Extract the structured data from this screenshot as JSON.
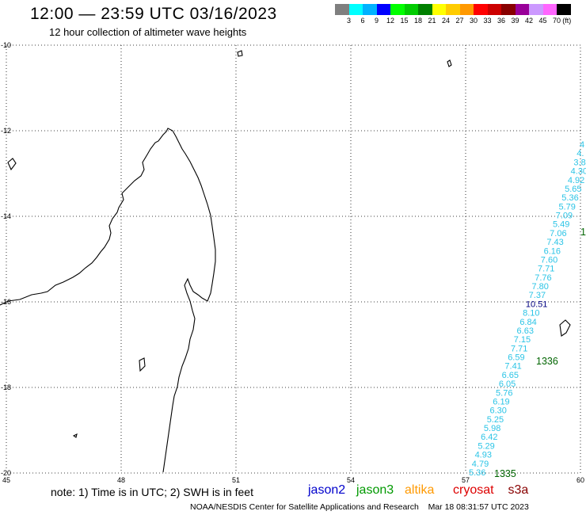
{
  "header": {
    "title": "12:00 — 23:59 UTC 03/16/2023",
    "subtitle": "12 hour collection of altimeter wave heights"
  },
  "color_scale": {
    "unit": "(ft)",
    "colors": [
      "#7f7f7f",
      "#00ffff",
      "#00b2ff",
      "#0000ff",
      "#00ff00",
      "#00cc00",
      "#008000",
      "#ffff00",
      "#ffcc00",
      "#ff9900",
      "#ff0000",
      "#cc0000",
      "#880000",
      "#990099",
      "#cc99ff",
      "#ff66ff",
      "#000000"
    ],
    "labels": [
      "3",
      "6",
      "9",
      "12",
      "15",
      "18",
      "21",
      "24",
      "27",
      "30",
      "33",
      "36",
      "39",
      "42",
      "45",
      "70"
    ]
  },
  "axes": {
    "lat_labels": [
      "-10",
      "-12",
      "-14",
      "-16",
      "-18",
      "-20"
    ],
    "lon_labels": [
      "45",
      "48",
      "51",
      "54",
      "57",
      "60"
    ]
  },
  "passes": {
    "track1_color": "#2bc4e6",
    "track1_values": [
      "5.36",
      "4.79",
      "4.93",
      "5.29",
      "6.42",
      "5.98",
      "5.25",
      "6.30",
      "6.19",
      "5.76",
      "6.05",
      "6.65",
      "7.41",
      "6.59",
      "7.71",
      "7.15",
      "6.63",
      "6.84",
      "8.10",
      "10.51",
      "7.37",
      "7.80",
      "7.76",
      "7.71",
      "7.60",
      "6.16",
      "7.43",
      "7.06",
      "5.49",
      "7.09",
      "5.79",
      "5.36",
      "5.65",
      "4.92",
      "4.30",
      "3.8",
      "4.",
      "4"
    ],
    "time_labels": [
      {
        "text": "1335",
        "color": "#006400"
      },
      {
        "text": "1336",
        "color": "#006400"
      },
      {
        "text": "1",
        "color": "#006400"
      }
    ]
  },
  "legend": {
    "note": "note:  1) Time is in UTC;  2) SWH is in feet",
    "satellites": [
      {
        "name": "jason2",
        "color": "#0000cc"
      },
      {
        "name": "jason3",
        "color": "#009900"
      },
      {
        "name": "altika",
        "color": "#ff9900"
      },
      {
        "name": "cryosat",
        "color": "#dd0000"
      },
      {
        "name": "s3a",
        "color": "#880000"
      }
    ]
  },
  "footer": {
    "credit": "NOAA/NESDIS Center for Satellite Applications and Research",
    "timestamp": "Mar 18 08:31:57 UTC 2023"
  }
}
